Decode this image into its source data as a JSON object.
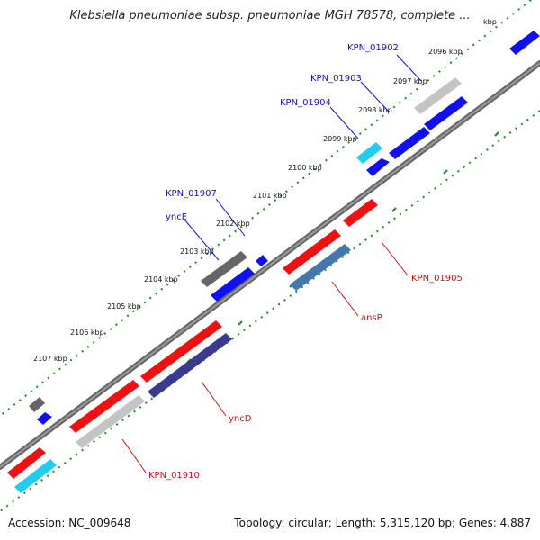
{
  "title": "Klebsiella pneumoniae subsp. pneumoniae MGH 78578, complete ...",
  "footer": {
    "accession": "Accession: NC_009648",
    "topology": "Topology: circular; Length: 5,315,120 bp; Genes: 4,887"
  },
  "ticks": [
    "2096 kbp",
    "2097 kbp",
    "2098 kbp",
    "2099 kbp",
    "2100 kbp",
    "2101 kbp",
    "2102 kbp",
    "2103 kbp",
    "2104 kbp",
    "2105 kbp",
    "2106 kbp",
    "2107 kbp"
  ],
  "partial_tick": "kbp",
  "genes": [
    {
      "label": "KPN_01902",
      "strand": "upper"
    },
    {
      "label": "KPN_01903",
      "strand": "upper"
    },
    {
      "label": "KPN_01904",
      "strand": "upper"
    },
    {
      "label": "KPN_01907",
      "strand": "upper"
    },
    {
      "label": "yncE",
      "strand": "upper"
    },
    {
      "label": "KPN_01905",
      "strand": "lower"
    },
    {
      "label": "ansP",
      "strand": "lower"
    },
    {
      "label": "yncD",
      "strand": "lower"
    },
    {
      "label": "KPN_01910",
      "strand": "lower"
    }
  ],
  "colors": {
    "upper_label": "#1010cc",
    "lower_label": "#cc1010",
    "red": "#ee1111",
    "blue": "#1111ee",
    "cyan": "#22ccee",
    "gray": "#666666",
    "lightgray": "#c4c4c4",
    "steelblue": "#4477aa",
    "darkblue": "#3a3a8e",
    "track_dots": "#228822",
    "backbone": "#808080"
  }
}
